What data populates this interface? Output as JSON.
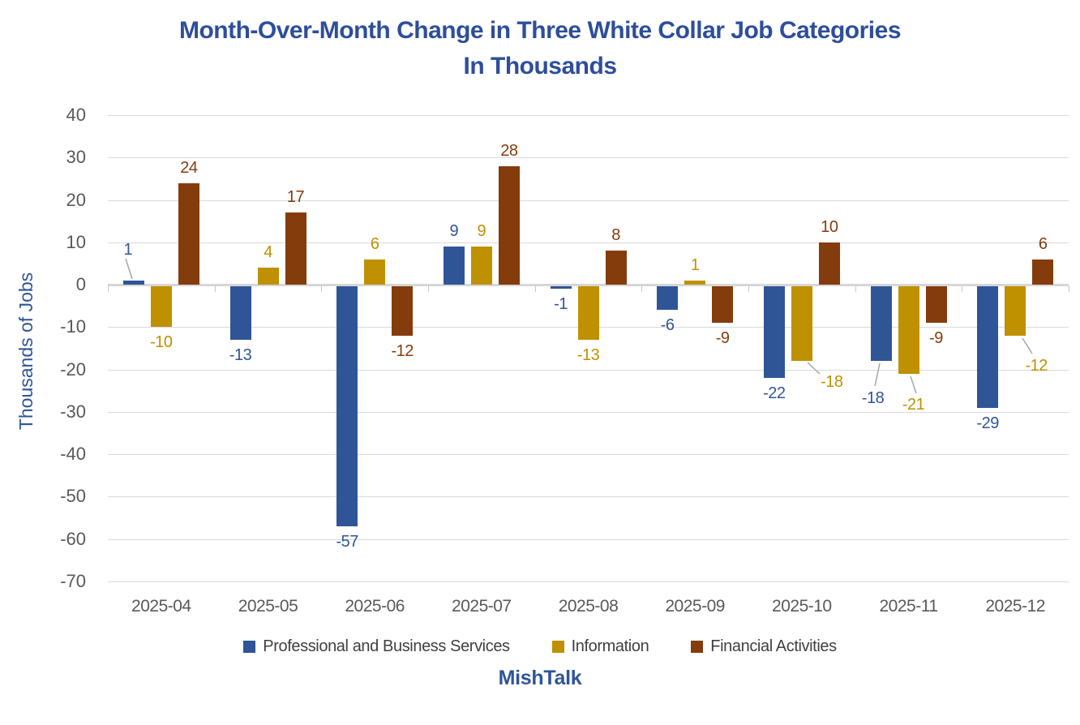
{
  "title": {
    "line1": "Month-Over-Month Change in Three White Collar Job Categories",
    "line2": "In Thousands",
    "color": "#2d4e9b"
  },
  "y_axis": {
    "label": "Thousands of Jobs",
    "label_color": "#2e5597",
    "ticks": [
      40,
      30,
      20,
      10,
      0,
      -10,
      -20,
      -30,
      -40,
      -50,
      -60,
      -70
    ]
  },
  "source": "MishTalk",
  "source_color": "#2e5597",
  "chart_data": {
    "type": "bar",
    "title": "Month-Over-Month Change in Three White Collar Job Categories In Thousands",
    "categories": [
      "2025-04",
      "2025-05",
      "2025-06",
      "2025-07",
      "2025-08",
      "2025-09",
      "2025-10",
      "2025-11",
      "2025-12"
    ],
    "series": [
      {
        "name": "Professional and Business Services",
        "color": "#2f5597",
        "values": [
          1,
          -13,
          -57,
          9,
          -1,
          -6,
          -22,
          -18,
          -29
        ]
      },
      {
        "name": "Information",
        "color": "#bf9000",
        "values": [
          -10,
          4,
          6,
          9,
          -13,
          1,
          -18,
          -21,
          -12
        ]
      },
      {
        "name": "Financial Activities",
        "color": "#843c0c",
        "values": [
          24,
          17,
          -12,
          28,
          8,
          -9,
          10,
          -9,
          6
        ]
      }
    ],
    "ylabel": "Thousands of Jobs",
    "xlabel": "",
    "ylim": [
      -70,
      40
    ],
    "ytick_step": 10,
    "grid": true,
    "data_labels": true,
    "legend_position": "bottom"
  }
}
